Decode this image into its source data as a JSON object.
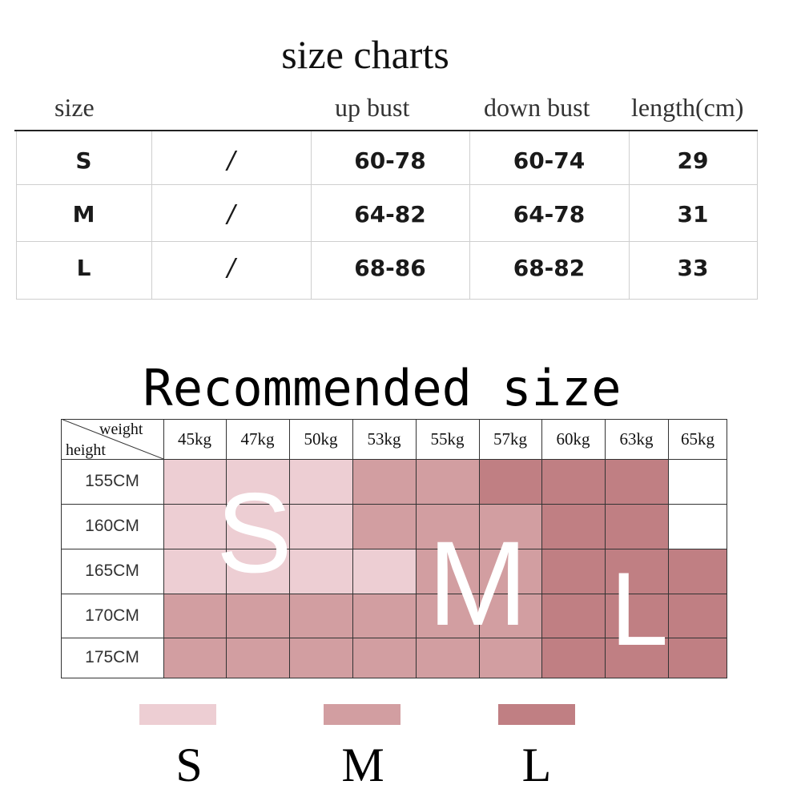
{
  "size_chart": {
    "title": "size charts",
    "headers": [
      "size",
      "up bust",
      "down bust",
      "length(cm)"
    ],
    "rows": [
      {
        "size": "S",
        "blank": "/",
        "up_bust": "60-78",
        "down_bust": "60-74",
        "length": "29"
      },
      {
        "size": "M",
        "blank": "/",
        "up_bust": "64-82",
        "down_bust": "64-78",
        "length": "31"
      },
      {
        "size": "L",
        "blank": "/",
        "up_bust": "68-86",
        "down_bust": "68-82",
        "length": "33"
      }
    ]
  },
  "recommended": {
    "title": "Recommended size",
    "corner_weight": "weight",
    "corner_height": "height",
    "weights": [
      "45kg",
      "47kg",
      "50kg",
      "53kg",
      "55kg",
      "57kg",
      "60kg",
      "63kg",
      "65kg"
    ],
    "heights": [
      "155CM",
      "160CM",
      "165CM",
      "170CM",
      "175CM"
    ],
    "grid": [
      [
        "S",
        "S",
        "S",
        "M",
        "M",
        "L",
        "L",
        "L",
        "-"
      ],
      [
        "S",
        "S",
        "S",
        "M",
        "M",
        "M",
        "L",
        "L",
        "-"
      ],
      [
        "S",
        "S",
        "S",
        "S",
        "M",
        "M",
        "L",
        "L",
        "L"
      ],
      [
        "M",
        "M",
        "M",
        "M",
        "M",
        "M",
        "L",
        "L",
        "L"
      ],
      [
        "M",
        "M",
        "M",
        "M",
        "M",
        "M",
        "L",
        "L",
        "L"
      ]
    ],
    "overlay_letters": [
      "S",
      "M",
      "L"
    ]
  },
  "legend": [
    {
      "label": "S",
      "color": "#edced3"
    },
    {
      "label": "M",
      "color": "#d29ea1"
    },
    {
      "label": "L",
      "color": "#c07f83"
    }
  ],
  "colors": {
    "S": "#edced3",
    "M": "#d29ea1",
    "L": "#c07f83",
    "-": "#ffffff"
  }
}
